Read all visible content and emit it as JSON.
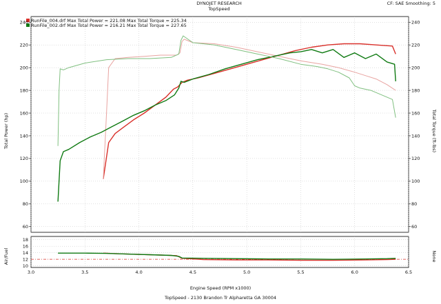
{
  "header": {
    "title": "DYNOJET RESEARCH",
    "subtitle": "TopSpeed",
    "top_right": "CF: SAE  Smoothing: 5"
  },
  "legend": [
    {
      "color_name": "red",
      "color": "#d9302a",
      "text": "RunFile_004.drf Max Total Power = 221.08      Max Total Torque = 225.34"
    },
    {
      "color_name": "green",
      "color": "#0f7a12",
      "text": "RunFile_002.drf Max Total Power = 216.21      Max Total Torque = 227.65"
    }
  ],
  "footer": {
    "xlabel": "Engine Speed (RPM x1000)",
    "caption": "TopSpeed - 2130 Brandon Tr Alpharetta GA 30004"
  },
  "chart_data": [
    {
      "type": "line",
      "ylabel_left": "Total Power (hp)",
      "ylabel_right": "Total Torque (ft-lbs)",
      "xlim": [
        3.0,
        6.5
      ],
      "ylim": [
        55,
        245
      ],
      "y_ticks": [
        60,
        80,
        100,
        120,
        140,
        160,
        180,
        200,
        220,
        240
      ],
      "grid": true,
      "series": [
        {
          "name": "RunFile_004.drf",
          "metric": "power",
          "color": "#d9302a",
          "x": [
            3.67,
            3.72,
            3.78,
            3.85,
            3.95,
            4.05,
            4.15,
            4.25,
            4.32,
            4.36,
            4.4,
            4.45,
            4.55,
            4.7,
            4.85,
            5.0,
            5.15,
            5.3,
            5.45,
            5.6,
            5.75,
            5.9,
            6.05,
            6.2,
            6.35,
            6.38
          ],
          "y": [
            102,
            134,
            142,
            147,
            154,
            160,
            167,
            174,
            181,
            183,
            187,
            189,
            191,
            195,
            199,
            203,
            207,
            211,
            215,
            218,
            220,
            221,
            221,
            220,
            219,
            212
          ]
        },
        {
          "name": "RunFile_004.drf",
          "metric": "torque",
          "color": "#e8a3a0",
          "x": [
            3.67,
            3.7,
            3.72,
            3.78,
            3.9,
            4.05,
            4.2,
            4.35,
            4.38,
            4.4,
            4.42,
            4.5,
            4.7,
            4.9,
            5.1,
            5.3,
            5.5,
            5.7,
            5.85,
            6.0,
            6.1,
            6.2,
            6.3,
            6.38
          ],
          "y": [
            102,
            160,
            200,
            208,
            209,
            210,
            211,
            211,
            213,
            223,
            225,
            222,
            221,
            218,
            214,
            210,
            206,
            203,
            200,
            196,
            193,
            190,
            185,
            180
          ]
        },
        {
          "name": "RunFile_002.drf",
          "metric": "power",
          "color": "#0f7a12",
          "x": [
            3.25,
            3.27,
            3.3,
            3.35,
            3.45,
            3.55,
            3.65,
            3.75,
            3.85,
            3.95,
            4.05,
            4.15,
            4.25,
            4.33,
            4.37,
            4.39,
            4.42,
            4.5,
            4.65,
            4.8,
            4.95,
            5.1,
            5.25,
            5.4,
            5.5,
            5.6,
            5.7,
            5.8,
            5.9,
            6.0,
            6.1,
            6.2,
            6.3,
            6.37,
            6.38
          ],
          "y": [
            82,
            118,
            126,
            128,
            134,
            139,
            143,
            148,
            153,
            158,
            162,
            167,
            171,
            176,
            182,
            188,
            187,
            190,
            194,
            199,
            203,
            207,
            210,
            213,
            214,
            216,
            213,
            216,
            209,
            213,
            208,
            212,
            205,
            203,
            188
          ]
        },
        {
          "name": "RunFile_002.drf",
          "metric": "torque",
          "color": "#7fbf7f",
          "x": [
            3.25,
            3.26,
            3.27,
            3.3,
            3.35,
            3.5,
            3.7,
            3.9,
            4.1,
            4.3,
            4.37,
            4.39,
            4.41,
            4.5,
            4.7,
            4.9,
            5.1,
            5.3,
            5.5,
            5.65,
            5.75,
            5.85,
            5.95,
            6.0,
            6.05,
            6.15,
            6.25,
            6.35,
            6.38
          ],
          "y": [
            131,
            180,
            199,
            198,
            200,
            204,
            207,
            208,
            208,
            209,
            212,
            224,
            228,
            222,
            220,
            216,
            212,
            208,
            203,
            201,
            199,
            196,
            191,
            184,
            182,
            180,
            176,
            172,
            156
          ]
        }
      ]
    },
    {
      "type": "line",
      "ylabel_left": "Air/Fuel",
      "ylabel_right": "None",
      "xlim": [
        3.0,
        6.5
      ],
      "ylim": [
        9.5,
        19.0
      ],
      "y_ticks": [
        10,
        12,
        14,
        16,
        18
      ],
      "x_ticks": [
        3.0,
        3.5,
        4.0,
        4.5,
        5.0,
        5.5,
        6.0,
        6.5
      ],
      "grid": true,
      "reference_line": 12.0,
      "series": [
        {
          "name": "RunFile_004.drf",
          "color": "#d9302a",
          "x": [
            3.67,
            3.8,
            4.0,
            4.2,
            4.35,
            4.4,
            4.6,
            4.9,
            5.2,
            5.5,
            5.8,
            6.1,
            6.3,
            6.38
          ],
          "y": [
            13.9,
            13.7,
            13.5,
            13.3,
            13.1,
            12.3,
            11.9,
            11.8,
            11.8,
            11.7,
            11.7,
            11.8,
            11.9,
            12.0
          ]
        },
        {
          "name": "RunFile_002.drf",
          "color": "#0f7a12",
          "x": [
            3.25,
            3.3,
            3.5,
            3.7,
            3.9,
            4.1,
            4.3,
            4.37,
            4.4,
            4.6,
            4.9,
            5.2,
            5.5,
            5.8,
            6.1,
            6.3,
            6.38
          ],
          "y": [
            13.9,
            13.9,
            13.9,
            13.8,
            13.6,
            13.4,
            13.2,
            12.9,
            12.4,
            12.3,
            12.2,
            12.1,
            12.1,
            12.0,
            12.1,
            12.2,
            12.3
          ]
        }
      ]
    }
  ]
}
